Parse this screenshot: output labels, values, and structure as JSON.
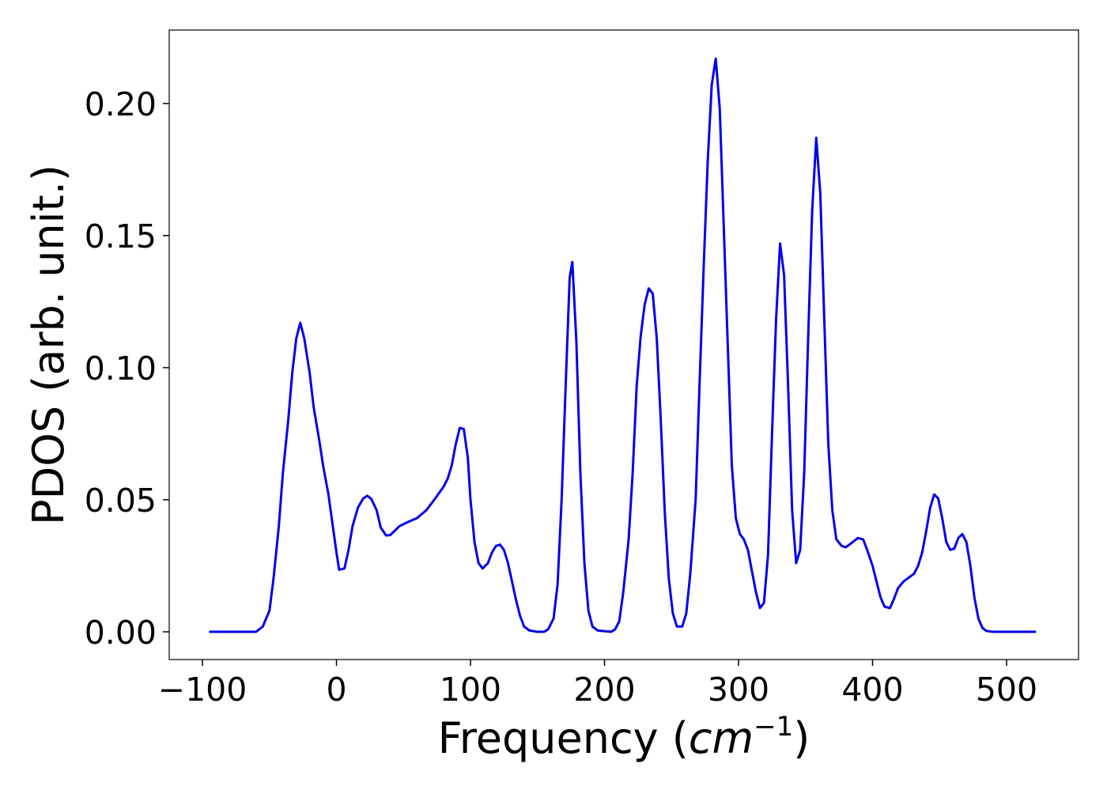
{
  "chart_data": {
    "type": "line",
    "x_label": {
      "text": "Frequency (",
      "unit": "cm",
      "exponent": "−1",
      "close": ")"
    },
    "y_label": "PDOS (arb. unit.)",
    "xlim": [
      -124.8,
      553.7
    ],
    "ylim": [
      -0.0105,
      0.2278
    ],
    "xticks": [
      {
        "value": -100,
        "label": "−100"
      },
      0,
      100,
      200,
      300,
      400,
      500
    ],
    "yticks": [
      {
        "value": 0,
        "label": "0.00"
      },
      {
        "value": 0.05,
        "label": "0.05"
      },
      {
        "value": 0.1,
        "label": "0.10"
      },
      {
        "value": 0.15,
        "label": "0.15"
      },
      {
        "value": 0.2,
        "label": "0.20"
      }
    ],
    "series": [
      {
        "color": "#0000ee",
        "x": [
          -95,
          -60,
          -55,
          -50,
          -47,
          -43,
          -40,
          -36,
          -33,
          -30,
          -27,
          -24,
          -20,
          -17,
          -13,
          -10,
          -6,
          -3,
          0,
          2,
          6,
          9,
          12,
          16,
          20,
          23,
          26,
          30,
          33,
          37,
          40,
          44,
          47,
          53,
          60,
          67,
          73,
          80,
          83,
          86,
          89,
          92,
          95,
          98,
          100,
          103,
          106,
          109,
          113,
          116,
          119,
          122,
          125,
          128,
          131,
          134,
          137,
          140,
          144,
          150,
          155,
          158,
          162,
          165,
          168,
          171,
          174,
          176,
          179,
          182,
          185,
          188,
          191,
          195,
          205,
          208,
          211,
          214,
          218,
          221,
          224,
          227,
          230,
          233,
          236,
          239,
          242,
          245,
          248,
          251,
          254,
          258,
          261,
          264,
          268,
          271,
          274,
          277,
          280,
          283,
          286,
          289,
          292,
          295,
          298,
          301,
          304,
          307,
          310,
          313,
          316,
          319,
          322,
          325,
          328,
          331,
          334,
          337,
          340,
          343,
          346,
          349,
          352,
          355,
          358,
          361,
          364,
          367,
          370,
          373,
          377,
          380,
          384,
          389,
          393,
          396,
          400,
          403,
          406,
          409,
          413,
          416,
          419,
          423,
          427,
          431,
          434,
          437,
          440,
          443,
          446,
          449,
          452,
          455,
          458,
          461,
          464,
          467,
          470,
          473,
          476,
          479,
          482,
          485,
          490,
          522
        ],
        "values": [
          0,
          0,
          0.002,
          0.008,
          0.02,
          0.04,
          0.06,
          0.08,
          0.098,
          0.111,
          0.117,
          0.111,
          0.098,
          0.085,
          0.073,
          0.063,
          0.052,
          0.041,
          0.03,
          0.0235,
          0.024,
          0.031,
          0.04,
          0.047,
          0.0505,
          0.0515,
          0.0503,
          0.046,
          0.0395,
          0.0365,
          0.0366,
          0.0385,
          0.04,
          0.0415,
          0.043,
          0.046,
          0.05,
          0.055,
          0.058,
          0.063,
          0.071,
          0.0772,
          0.0768,
          0.066,
          0.05,
          0.034,
          0.026,
          0.024,
          0.026,
          0.03,
          0.0325,
          0.033,
          0.031,
          0.026,
          0.019,
          0.012,
          0.006,
          0.002,
          0.0005,
          0,
          0,
          0.001,
          0.005,
          0.018,
          0.05,
          0.093,
          0.134,
          0.14,
          0.11,
          0.06,
          0.026,
          0.008,
          0.002,
          0.0005,
          0,
          0.001,
          0.004,
          0.015,
          0.035,
          0.06,
          0.093,
          0.112,
          0.124,
          0.13,
          0.128,
          0.111,
          0.08,
          0.045,
          0.02,
          0.007,
          0.002,
          0.002,
          0.007,
          0.022,
          0.05,
          0.095,
          0.138,
          0.178,
          0.207,
          0.217,
          0.198,
          0.153,
          0.108,
          0.063,
          0.043,
          0.037,
          0.035,
          0.031,
          0.023,
          0.015,
          0.009,
          0.011,
          0.029,
          0.075,
          0.118,
          0.147,
          0.135,
          0.093,
          0.046,
          0.026,
          0.031,
          0.06,
          0.112,
          0.16,
          0.187,
          0.166,
          0.118,
          0.071,
          0.046,
          0.035,
          0.0325,
          0.032,
          0.0335,
          0.0355,
          0.035,
          0.031,
          0.025,
          0.019,
          0.013,
          0.0095,
          0.009,
          0.0125,
          0.0165,
          0.019,
          0.0205,
          0.022,
          0.025,
          0.03,
          0.038,
          0.047,
          0.052,
          0.0505,
          0.043,
          0.034,
          0.031,
          0.0315,
          0.0355,
          0.037,
          0.034,
          0.025,
          0.013,
          0.005,
          0.0015,
          0.0003,
          0,
          0
        ]
      }
    ]
  }
}
